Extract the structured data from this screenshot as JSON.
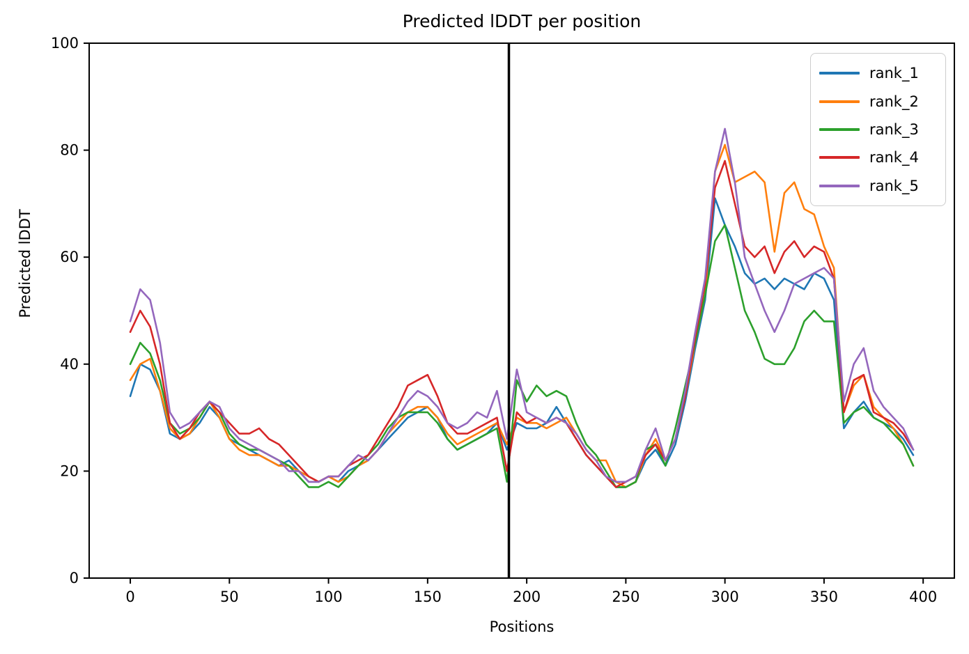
{
  "chart_data": {
    "type": "line",
    "title": "Predicted lDDT per position",
    "xlabel": "Positions",
    "ylabel": "Predicted lDDT",
    "xlim": [
      -20.75,
      415.75
    ],
    "ylim": [
      0,
      100
    ],
    "x_ticks": [
      0,
      50,
      100,
      150,
      200,
      250,
      300,
      350,
      400
    ],
    "y_ticks": [
      0,
      20,
      40,
      60,
      80,
      100
    ],
    "grid": false,
    "legend_position": "upper right",
    "divider_x": 191,
    "divider_color": "#000000",
    "axis_color": "#000000",
    "positions": [
      0,
      5,
      10,
      15,
      20,
      25,
      30,
      35,
      40,
      45,
      50,
      55,
      60,
      65,
      70,
      75,
      80,
      85,
      90,
      95,
      100,
      105,
      110,
      115,
      120,
      125,
      130,
      135,
      140,
      145,
      150,
      155,
      160,
      165,
      170,
      175,
      180,
      185,
      190,
      195,
      200,
      205,
      210,
      215,
      220,
      225,
      230,
      235,
      240,
      245,
      250,
      255,
      260,
      265,
      270,
      275,
      280,
      285,
      290,
      295,
      300,
      305,
      310,
      315,
      320,
      325,
      330,
      335,
      340,
      345,
      350,
      355,
      360,
      365,
      370,
      375,
      380,
      385,
      390,
      395
    ],
    "series": [
      {
        "name": "rank_1",
        "color": "#1f77b4",
        "values": [
          34,
          40,
          39,
          35,
          27,
          26,
          27,
          29,
          32,
          30,
          26,
          25,
          24,
          23,
          22,
          21,
          22,
          20,
          18,
          18,
          19,
          18,
          20,
          21,
          22,
          24,
          26,
          28,
          30,
          31,
          32,
          30,
          26,
          24,
          25,
          26,
          27,
          29,
          24,
          29,
          28,
          28,
          29,
          32,
          29,
          26,
          23,
          21,
          19,
          17,
          17,
          18,
          22,
          24,
          21,
          25,
          33,
          43,
          52,
          71,
          66,
          62,
          57,
          55,
          56,
          54,
          56,
          55,
          54,
          57,
          56,
          52,
          28,
          31,
          33,
          30,
          29,
          28,
          26,
          23
        ]
      },
      {
        "name": "rank_2",
        "color": "#ff7f0e",
        "values": [
          37,
          40,
          41,
          35,
          28,
          26,
          27,
          30,
          33,
          30,
          26,
          24,
          23,
          23,
          22,
          21,
          21,
          20,
          19,
          18,
          19,
          18,
          19,
          21,
          22,
          24,
          27,
          29,
          31,
          32,
          32,
          30,
          27,
          25,
          26,
          27,
          28,
          29,
          25,
          30,
          29,
          29,
          28,
          29,
          30,
          27,
          24,
          22,
          22,
          18,
          17,
          18,
          23,
          26,
          22,
          26,
          34,
          44,
          53,
          76,
          81,
          74,
          75,
          76,
          74,
          61,
          72,
          74,
          69,
          68,
          62,
          58,
          31,
          36,
          38,
          32,
          30,
          28,
          25,
          21
        ]
      },
      {
        "name": "rank_3",
        "color": "#2ca02c",
        "values": [
          40,
          44,
          42,
          37,
          29,
          27,
          28,
          30,
          33,
          31,
          27,
          25,
          24,
          24,
          23,
          22,
          21,
          19,
          17,
          17,
          18,
          17,
          19,
          21,
          23,
          25,
          28,
          30,
          31,
          31,
          31,
          29,
          26,
          24,
          25,
          26,
          27,
          28,
          18,
          37,
          33,
          36,
          34,
          35,
          34,
          29,
          25,
          23,
          20,
          17,
          17,
          18,
          24,
          25,
          21,
          28,
          36,
          44,
          53,
          63,
          66,
          58,
          50,
          46,
          41,
          40,
          40,
          43,
          48,
          50,
          48,
          48,
          29,
          31,
          32,
          30,
          29,
          27,
          25,
          21
        ]
      },
      {
        "name": "rank_4",
        "color": "#d62728",
        "values": [
          46,
          50,
          47,
          40,
          29,
          26,
          28,
          31,
          33,
          31,
          29,
          27,
          27,
          28,
          26,
          25,
          23,
          21,
          19,
          18,
          19,
          19,
          21,
          22,
          23,
          26,
          29,
          32,
          36,
          37,
          38,
          34,
          29,
          27,
          27,
          28,
          29,
          30,
          20,
          31,
          29,
          30,
          29,
          30,
          29,
          26,
          23,
          21,
          19,
          17,
          18,
          19,
          23,
          25,
          22,
          26,
          34,
          45,
          55,
          73,
          78,
          70,
          62,
          60,
          62,
          57,
          61,
          63,
          60,
          62,
          61,
          56,
          31,
          37,
          38,
          31,
          30,
          29,
          27,
          24
        ]
      },
      {
        "name": "rank_5",
        "color": "#9467bd",
        "values": [
          48,
          54,
          52,
          44,
          31,
          28,
          29,
          31,
          33,
          32,
          28,
          26,
          25,
          24,
          23,
          22,
          20,
          20,
          18,
          18,
          19,
          19,
          21,
          23,
          22,
          24,
          27,
          30,
          33,
          35,
          34,
          32,
          29,
          28,
          29,
          31,
          30,
          35,
          26,
          39,
          31,
          30,
          29,
          30,
          29,
          27,
          24,
          22,
          19,
          18,
          18,
          19,
          24,
          28,
          22,
          26,
          35,
          46,
          56,
          76,
          84,
          74,
          60,
          55,
          50,
          46,
          50,
          55,
          56,
          57,
          58,
          56,
          33,
          40,
          43,
          35,
          32,
          30,
          28,
          24
        ]
      }
    ]
  }
}
